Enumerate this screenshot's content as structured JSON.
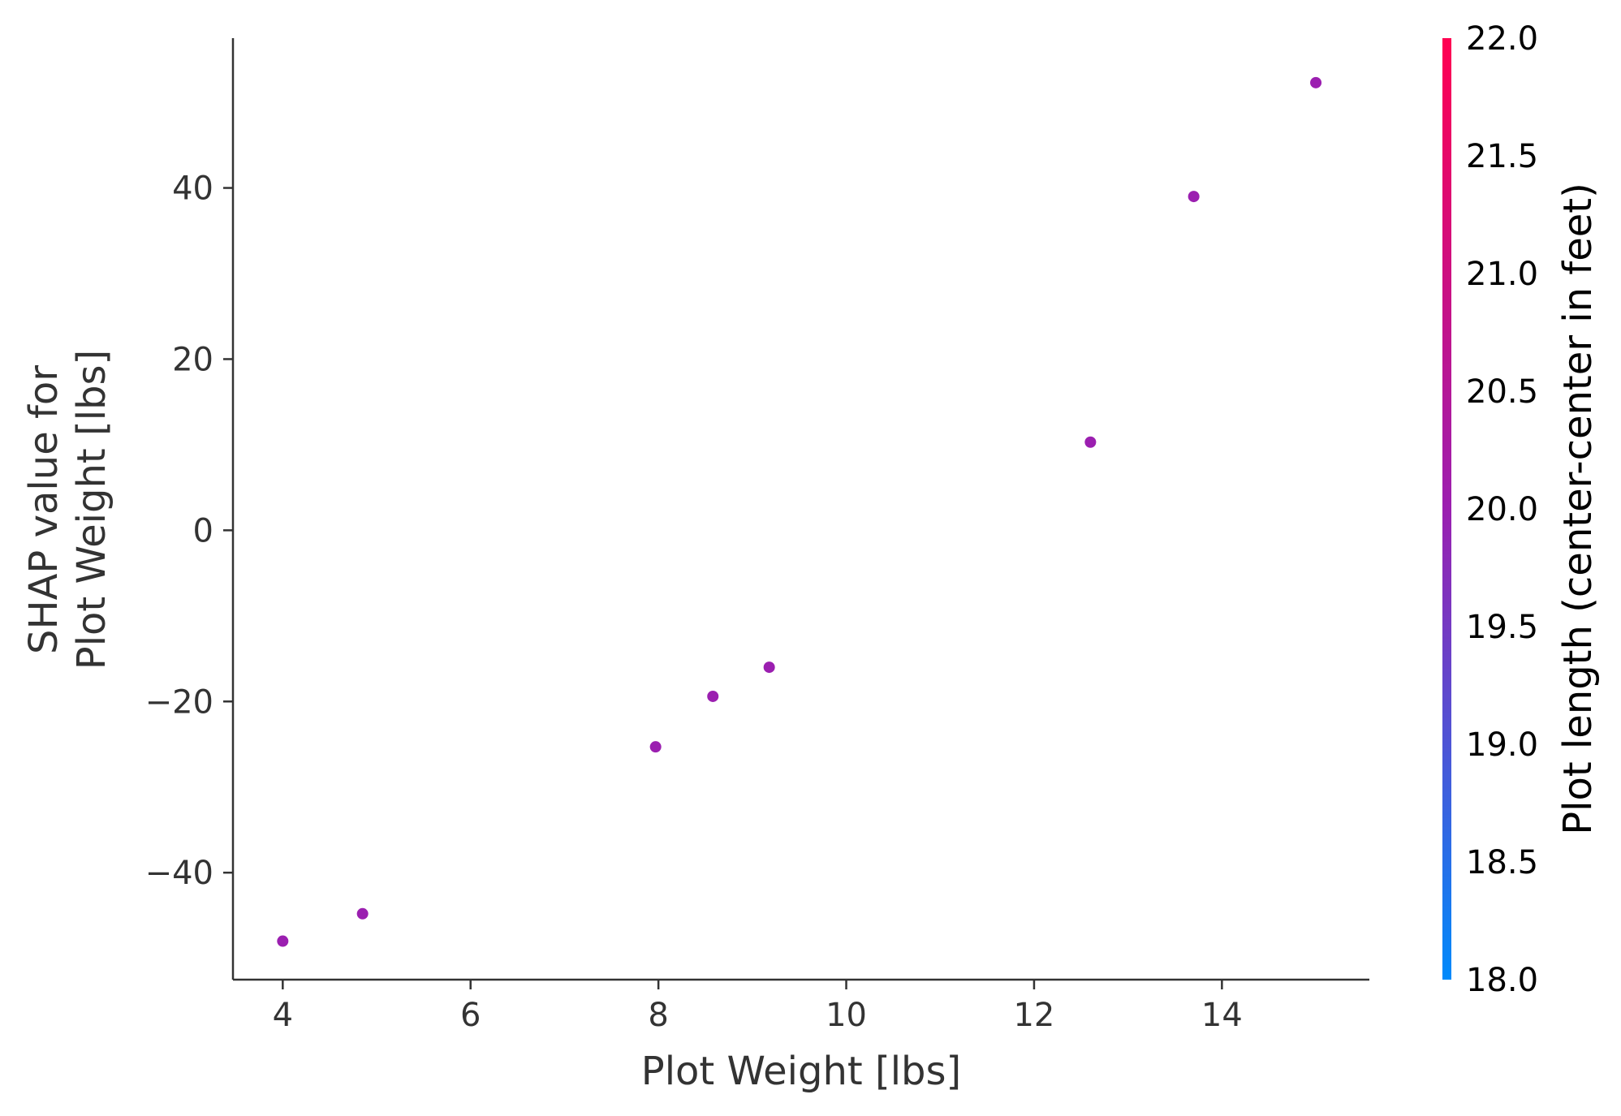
{
  "chart_data": {
    "type": "scatter",
    "title": "",
    "xlabel": "Plot Weight [lbs]",
    "ylabel_lines": [
      "SHAP value for",
      "Plot Weight [lbs]"
    ],
    "xlim": [
      3.47,
      15.57
    ],
    "ylim": [
      -52.5,
      57.5
    ],
    "xticks": [
      4,
      6,
      8,
      10,
      12,
      14
    ],
    "xtick_labels": [
      "4",
      "6",
      "8",
      "10",
      "12",
      "14"
    ],
    "yticks": [
      -40,
      -20,
      0,
      20,
      40
    ],
    "ytick_labels": [
      "−40",
      "−20",
      "0",
      "20",
      "40"
    ],
    "grid": false,
    "point_color": "#9b1fb0",
    "points": [
      {
        "x": 4.0,
        "y": -48.0
      },
      {
        "x": 4.85,
        "y": -44.8
      },
      {
        "x": 7.97,
        "y": -25.3
      },
      {
        "x": 8.58,
        "y": -19.4
      },
      {
        "x": 9.18,
        "y": -16.0
      },
      {
        "x": 12.6,
        "y": 10.3
      },
      {
        "x": 13.7,
        "y": 39.0
      },
      {
        "x": 15.0,
        "y": 52.3
      }
    ],
    "colorbar": {
      "label": "Plot length (center-center in feet)",
      "range": [
        18.0,
        22.0
      ],
      "ticks": [
        18.0,
        18.5,
        19.0,
        19.5,
        20.0,
        20.5,
        21.0,
        21.5,
        22.0
      ],
      "tick_labels": [
        "18.0",
        "18.5",
        "19.0",
        "19.5",
        "20.0",
        "20.5",
        "21.0",
        "21.5",
        "22.0"
      ],
      "color_low": "#008afb",
      "color_mid": "#9b1fb0",
      "color_high": "#ff0051"
    }
  }
}
